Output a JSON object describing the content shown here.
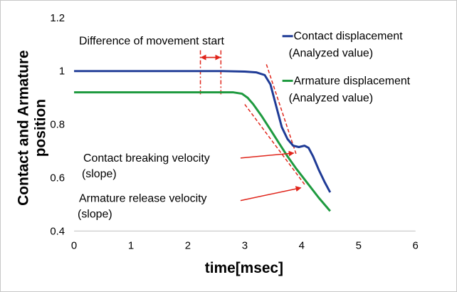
{
  "chart_data": {
    "type": "line",
    "xlabel": "time[msec]",
    "ylabel": "Contact and Armature position",
    "xlim": [
      0,
      6
    ],
    "ylim": [
      0.4,
      1.2
    ],
    "x_ticks": [
      0,
      1,
      2,
      3,
      4,
      5,
      6
    ],
    "x_tick_labels": [
      "0",
      "1",
      "2",
      "3",
      "4",
      "5",
      "6"
    ],
    "y_ticks": [
      0.4,
      0.6,
      0.8,
      1.0,
      1.2
    ],
    "y_tick_labels": [
      "0.4",
      "0.6",
      "0.8",
      "1",
      "1.2"
    ],
    "grid": false,
    "legend_position": "top-right",
    "series": [
      {
        "name": "Contact displacement\n(Analyzed value)",
        "color": "#1f3b96",
        "points": [
          [
            0,
            1.0
          ],
          [
            1,
            1.0
          ],
          [
            2,
            1.0
          ],
          [
            2.6,
            1.0
          ],
          [
            3.0,
            0.998
          ],
          [
            3.2,
            0.995
          ],
          [
            3.35,
            0.985
          ],
          [
            3.45,
            0.95
          ],
          [
            3.55,
            0.87
          ],
          [
            3.65,
            0.79
          ],
          [
            3.75,
            0.745
          ],
          [
            3.85,
            0.72
          ],
          [
            3.95,
            0.715
          ],
          [
            4.05,
            0.72
          ],
          [
            4.12,
            0.712
          ],
          [
            4.2,
            0.68
          ],
          [
            4.3,
            0.63
          ],
          [
            4.4,
            0.585
          ],
          [
            4.5,
            0.545
          ]
        ]
      },
      {
        "name": "Armature displacement\n(Analyzed value)",
        "color": "#1e9a3f",
        "points": [
          [
            0,
            0.92
          ],
          [
            1,
            0.92
          ],
          [
            2,
            0.92
          ],
          [
            2.8,
            0.92
          ],
          [
            2.95,
            0.915
          ],
          [
            3.05,
            0.9
          ],
          [
            3.15,
            0.875
          ],
          [
            3.3,
            0.83
          ],
          [
            3.45,
            0.78
          ],
          [
            3.6,
            0.73
          ],
          [
            3.75,
            0.68
          ],
          [
            3.9,
            0.635
          ],
          [
            4.1,
            0.58
          ],
          [
            4.3,
            0.525
          ],
          [
            4.5,
            0.475
          ]
        ]
      }
    ],
    "annotations": {
      "movement_start": "Difference of movement start",
      "contact_velocity": "Contact breaking velocity\n(slope)",
      "armature_velocity": "Armature release velocity\n(slope)"
    },
    "guide_lines": {
      "movement_start_x": [
        2.22,
        2.58
      ],
      "contact_slope": [
        [
          3.38,
          1.025
        ],
        [
          3.9,
          0.69
        ]
      ],
      "armature_slope": [
        [
          3.0,
          0.875
        ],
        [
          4.05,
          0.575
        ]
      ]
    },
    "annotation_color": "#e0251b"
  }
}
